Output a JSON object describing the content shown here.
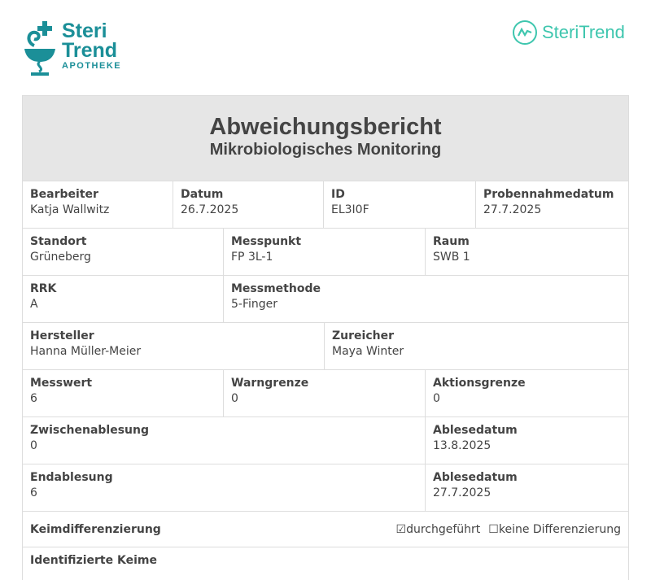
{
  "logos": {
    "left": {
      "line1": "Steri",
      "line2": "Trend",
      "line3": "APOTHEKE"
    },
    "right": "SteriTrend"
  },
  "header": {
    "title": "Abweichungsbericht",
    "subtitle": "Mikrobiologisches Monitoring"
  },
  "fields": {
    "bearbeiter": {
      "label": "Bearbeiter",
      "value": "Katja Wallwitz"
    },
    "datum": {
      "label": "Datum",
      "value": "26.7.2025"
    },
    "id": {
      "label": "ID",
      "value": "EL3I0F"
    },
    "probennahmedatum": {
      "label": "Probennahmedatum",
      "value": "27.7.2025"
    },
    "standort": {
      "label": "Standort",
      "value": "Grüneberg"
    },
    "messpunkt": {
      "label": "Messpunkt",
      "value": "FP 3L-1"
    },
    "raum": {
      "label": "Raum",
      "value": "SWB 1"
    },
    "rrk": {
      "label": "RRK",
      "value": "A"
    },
    "messmethode": {
      "label": "Messmethode",
      "value": "5-Finger"
    },
    "hersteller": {
      "label": "Hersteller",
      "value": "Hanna Müller-Meier"
    },
    "zureicher": {
      "label": "Zureicher",
      "value": "Maya Winter"
    },
    "messwert": {
      "label": "Messwert",
      "value": "6"
    },
    "warngrenze": {
      "label": "Warngrenze",
      "value": "0"
    },
    "aktionsgrenze": {
      "label": "Aktionsgrenze",
      "value": "0"
    },
    "zwischenablesung": {
      "label": "Zwischenablesung",
      "value": "0"
    },
    "ablesedatum1": {
      "label": "Ablesedatum",
      "value": "13.8.2025"
    },
    "endablesung": {
      "label": "Endablesung",
      "value": "6"
    },
    "ablesedatum2": {
      "label": "Ablesedatum",
      "value": "27.7.2025"
    }
  },
  "keimdifferenzierung": {
    "label": "Keimdifferenzierung",
    "options": [
      {
        "label": "durchgeführt",
        "checked": true,
        "mark": "☑"
      },
      {
        "label": "keine Differenzierung",
        "checked": false,
        "mark": "☐"
      }
    ]
  },
  "identifizierte_keime": {
    "label": "Identifizierte Keime"
  }
}
